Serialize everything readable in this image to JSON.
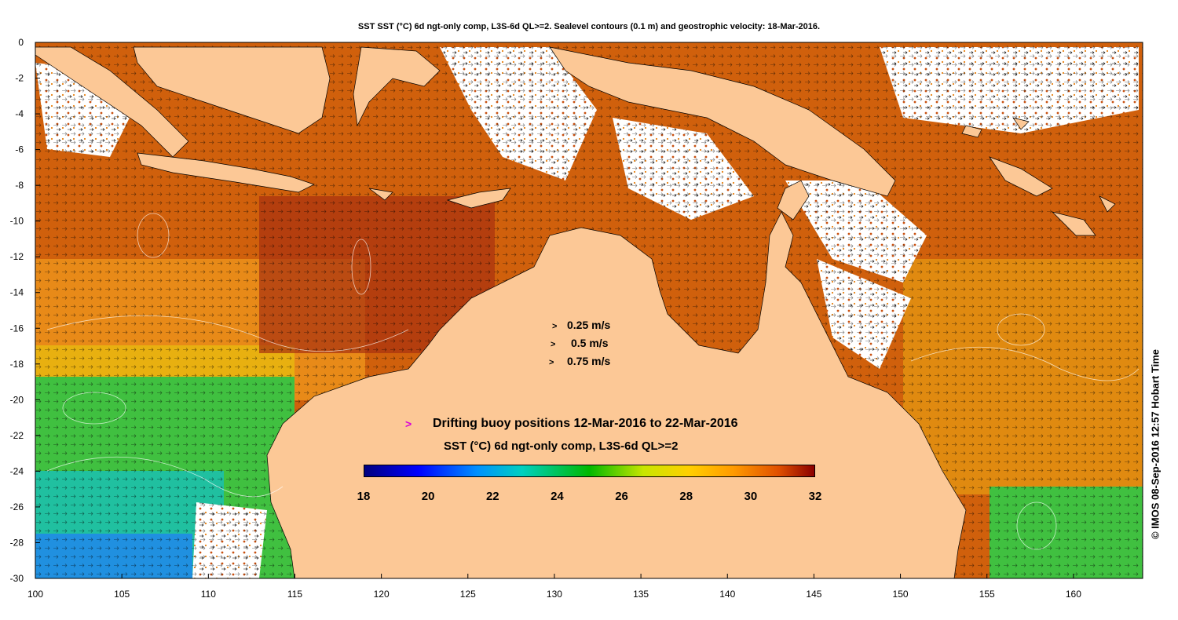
{
  "title": "SST SST (°C) 6d ngt-only comp, L3S-6d QL>=2. Sealevel contours (0.1 m) and geostrophic velocity: 18-Mar-2016.",
  "credit": "© IMOS 08-Sep-2016 12:57 Hobart Time",
  "x_axis": {
    "ticks": [
      "100",
      "105",
      "110",
      "115",
      "120",
      "125",
      "130",
      "135",
      "140",
      "145",
      "150",
      "155",
      "160"
    ]
  },
  "y_axis": {
    "ticks": [
      "0",
      "-2",
      "-4",
      "-6",
      "-8",
      "-10",
      "-12",
      "-14",
      "-16",
      "-18",
      "-20",
      "-22",
      "-24",
      "-26",
      "-28",
      "-30"
    ]
  },
  "velocity_legend": [
    {
      "arrow": ">",
      "label": "0.25 m/s"
    },
    {
      "arrow": ">",
      "label": "0.5 m/s"
    },
    {
      "arrow": ">",
      "label": "0.75 m/s"
    }
  ],
  "buoy_legend": {
    "arrow": ">",
    "label": "Drifting buoy positions 12-Mar-2016 to 22-Mar-2016"
  },
  "colorbar": {
    "title": "SST (°C) 6d ngt-only comp, L3S-6d QL>=2",
    "min": 18,
    "max": 32,
    "ticks": [
      "18",
      "20",
      "22",
      "24",
      "26",
      "28",
      "30",
      "32"
    ],
    "colors": [
      "#00007f",
      "#0000ff",
      "#0080ff",
      "#00d0d0",
      "#00c000",
      "#c8e600",
      "#ffd000",
      "#ff9000",
      "#e05000",
      "#8b0000"
    ]
  },
  "colors": {
    "land": "#fcc896",
    "warm_sea": "#c85010",
    "hot_sea": "#a02808",
    "mid_sea": "#e88010",
    "cool_sea": "#30c030",
    "cold_sea": "#20a0d0",
    "cloud": "#ffffff",
    "buoy": "#d800d8"
  }
}
